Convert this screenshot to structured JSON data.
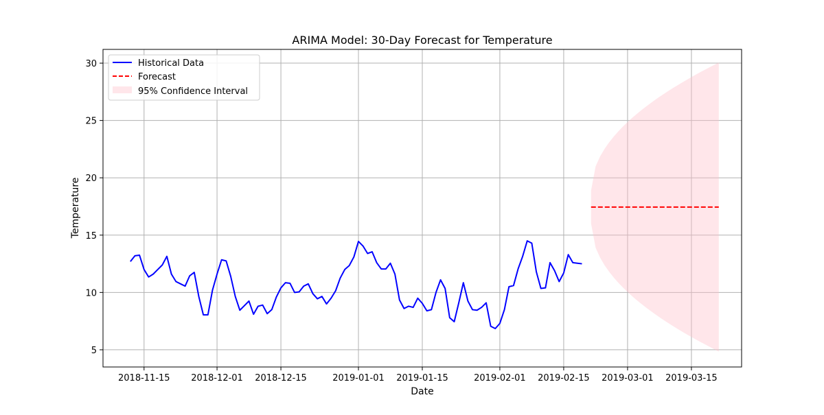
{
  "colors": {
    "historical": "#0000ff",
    "forecast": "#ff0000",
    "confidence": "#ffc0cb",
    "grid": "#b0b0b0",
    "axis": "#000000"
  },
  "chart_data": {
    "type": "line",
    "title": "ARIMA Model: 30-Day Forecast for Temperature",
    "xlabel": "Date",
    "ylabel": "Temperature",
    "xlim": [
      "2018-11-06",
      "2019-03-26"
    ],
    "ylim": [
      3.5,
      31.2
    ],
    "x_ticks": [
      "2018-11-15",
      "2018-12-01",
      "2018-12-15",
      "2019-01-01",
      "2019-01-15",
      "2019-02-01",
      "2019-02-15",
      "2019-03-01",
      "2019-03-15"
    ],
    "y_ticks": [
      5,
      10,
      15,
      20,
      25,
      30
    ],
    "grid": true,
    "legend_position": "upper-left",
    "legend": [
      "Historical Data",
      "Forecast",
      "95% Confidence Interval"
    ],
    "historical": {
      "name": "Historical Data",
      "start_date": "2018-11-12",
      "values": [
        12.7,
        13.2,
        13.25,
        12.0,
        11.35,
        11.6,
        12.0,
        12.4,
        13.15,
        11.6,
        10.95,
        10.75,
        10.55,
        11.45,
        11.75,
        9.65,
        8.05,
        8.05,
        10.2,
        11.6,
        12.85,
        12.75,
        11.4,
        9.65,
        8.45,
        8.85,
        9.25,
        8.1,
        8.8,
        8.9,
        8.15,
        8.5,
        9.6,
        10.4,
        10.85,
        10.8,
        10.0,
        10.05,
        10.55,
        10.75,
        9.9,
        9.45,
        9.65,
        9.0,
        9.5,
        10.15,
        11.25,
        12.0,
        12.35,
        13.1,
        14.45,
        14.05,
        13.4,
        13.55,
        12.6,
        12.05,
        12.05,
        12.55,
        11.6,
        9.35,
        8.6,
        8.8,
        8.7,
        9.5,
        9.05,
        8.4,
        8.5,
        10.0,
        11.1,
        10.35,
        7.8,
        7.45,
        9.1,
        10.85,
        9.25,
        8.5,
        8.45,
        8.7,
        9.1,
        7.05,
        6.85,
        7.3,
        8.5,
        10.5,
        10.6,
        12.05,
        13.15,
        14.5,
        14.3,
        11.8,
        10.35,
        10.4,
        12.6,
        11.9,
        10.95,
        11.7,
        13.3,
        12.6,
        12.55,
        12.5
      ]
    },
    "forecast": {
      "name": "Forecast",
      "start_date": "2019-02-21",
      "end_date": "2019-03-21",
      "value": 17.45
    },
    "confidence_interval": {
      "name": "95% Confidence Interval",
      "start_date": "2019-02-21",
      "end_date": "2019-03-21",
      "lower_start": 16.0,
      "upper_start": 18.9,
      "lower_end": 4.85,
      "upper_end": 30.05
    }
  }
}
